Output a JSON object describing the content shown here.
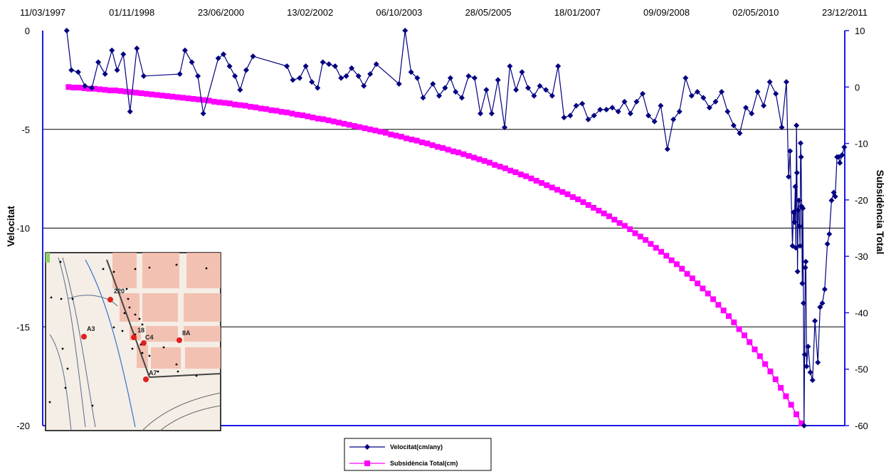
{
  "chart_data": {
    "type": "line",
    "title": "",
    "xlabel": "",
    "x_tick_labels": [
      "11/03/1997",
      "01/11/1998",
      "23/06/2000",
      "13/02/2002",
      "06/10/2003",
      "28/05/2005",
      "18/01/2007",
      "09/09/2008",
      "02/05/2010",
      "23/12/2011"
    ],
    "xlim": [
      "1997-03-11",
      "2011-12-23"
    ],
    "y_left": {
      "label": "Velocitat",
      "lim": [
        -20,
        0
      ],
      "ticks": [
        "0",
        "-5",
        "-10",
        "-15",
        "-20"
      ]
    },
    "y_right": {
      "label": "Subsidència Total",
      "lim": [
        -60,
        10
      ],
      "ticks": [
        "10",
        "0",
        "-10",
        "-20",
        "-30",
        "-40",
        "-50",
        "-60"
      ]
    },
    "grid": "horizontal",
    "legend_position": "bottom-center",
    "series": [
      {
        "name": "Velocitat(cm/any)",
        "axis": "left",
        "color": "#000080",
        "marker": "diamond",
        "points": [
          [
            "1997-08-20",
            0
          ],
          [
            "1997-09-20",
            -2.0
          ],
          [
            "1997-11-05",
            -2.1
          ],
          [
            "1997-12-20",
            -2.8
          ],
          [
            "1998-02-05",
            -2.9
          ],
          [
            "1998-03-20",
            -1.6
          ],
          [
            "1998-05-05",
            -2.2
          ],
          [
            "1998-06-20",
            -1.0
          ],
          [
            "1998-07-25",
            -2.0
          ],
          [
            "1998-09-05",
            -1.2
          ],
          [
            "1998-10-20",
            -4.1
          ],
          [
            "1998-12-05",
            -0.9
          ],
          [
            "1999-01-20",
            -2.3
          ],
          [
            "1999-09-20",
            -2.2
          ],
          [
            "1999-10-25",
            -1.0
          ],
          [
            "1999-12-10",
            -1.6
          ],
          [
            "2000-01-20",
            -2.3
          ],
          [
            "2000-02-25",
            -4.2
          ],
          [
            "2000-06-05",
            -1.4
          ],
          [
            "2000-07-10",
            -1.2
          ],
          [
            "2000-08-20",
            -1.8
          ],
          [
            "2000-09-25",
            -2.3
          ],
          [
            "2000-10-30",
            -3.0
          ],
          [
            "2000-12-10",
            -2.0
          ],
          [
            "2001-01-25",
            -1.3
          ],
          [
            "2001-09-10",
            -1.8
          ],
          [
            "2001-10-20",
            -2.5
          ],
          [
            "2001-12-05",
            -2.4
          ],
          [
            "2002-01-15",
            -1.8
          ],
          [
            "2002-02-25",
            -2.6
          ],
          [
            "2002-04-05",
            -2.9
          ],
          [
            "2002-05-10",
            -1.6
          ],
          [
            "2002-06-20",
            -1.7
          ],
          [
            "2002-08-01",
            -1.8
          ],
          [
            "2002-09-10",
            -2.4
          ],
          [
            "2002-10-15",
            -2.3
          ],
          [
            "2002-11-20",
            -1.9
          ],
          [
            "2003-01-05",
            -2.3
          ],
          [
            "2003-02-10",
            -2.8
          ],
          [
            "2003-03-25",
            -2.2
          ],
          [
            "2003-05-05",
            -1.7
          ],
          [
            "2003-10-05",
            -2.7
          ],
          [
            "2003-11-15",
            0
          ],
          [
            "2003-12-25",
            -2.1
          ],
          [
            "2004-02-05",
            -2.4
          ],
          [
            "2004-03-15",
            -3.4
          ],
          [
            "2004-05-20",
            -2.7
          ],
          [
            "2004-07-01",
            -3.3
          ],
          [
            "2004-08-10",
            -2.9
          ],
          [
            "2004-09-15",
            -2.4
          ],
          [
            "2004-10-20",
            -3.1
          ],
          [
            "2004-12-01",
            -3.4
          ],
          [
            "2005-01-15",
            -2.3
          ],
          [
            "2005-02-25",
            -2.4
          ],
          [
            "2005-04-05",
            -4.2
          ],
          [
            "2005-05-15",
            -3.0
          ],
          [
            "2005-06-20",
            -4.2
          ],
          [
            "2005-08-01",
            -2.5
          ],
          [
            "2005-09-15",
            -4.9
          ],
          [
            "2005-10-20",
            -1.8
          ],
          [
            "2005-12-01",
            -3.0
          ],
          [
            "2006-01-10",
            -2.1
          ],
          [
            "2006-02-20",
            -2.9
          ],
          [
            "2006-04-01",
            -3.3
          ],
          [
            "2006-05-10",
            -2.8
          ],
          [
            "2006-06-20",
            -3.0
          ],
          [
            "2006-08-01",
            -3.3
          ],
          [
            "2006-09-10",
            -1.8
          ],
          [
            "2006-10-20",
            -4.4
          ],
          [
            "2006-12-01",
            -4.3
          ],
          [
            "2007-01-10",
            -3.8
          ],
          [
            "2007-02-20",
            -3.7
          ],
          [
            "2007-04-01",
            -4.5
          ],
          [
            "2007-05-10",
            -4.3
          ],
          [
            "2007-06-20",
            -4.0
          ],
          [
            "2007-08-01",
            -4.0
          ],
          [
            "2007-09-10",
            -3.9
          ],
          [
            "2007-10-20",
            -4.1
          ],
          [
            "2007-12-01",
            -3.6
          ],
          [
            "2008-01-10",
            -4.2
          ],
          [
            "2008-02-20",
            -3.6
          ],
          [
            "2008-04-01",
            -3.2
          ],
          [
            "2008-05-10",
            -4.3
          ],
          [
            "2008-06-20",
            -4.6
          ],
          [
            "2008-08-01",
            -3.8
          ],
          [
            "2008-09-15",
            -6.0
          ],
          [
            "2008-10-25",
            -4.5
          ],
          [
            "2008-12-05",
            -4.1
          ],
          [
            "2009-01-15",
            -2.4
          ],
          [
            "2009-02-25",
            -3.3
          ],
          [
            "2009-04-05",
            -3.1
          ],
          [
            "2009-05-15",
            -3.4
          ],
          [
            "2009-06-25",
            -3.9
          ],
          [
            "2009-08-05",
            -3.6
          ],
          [
            "2009-09-15",
            -3.1
          ],
          [
            "2009-10-25",
            -4.1
          ],
          [
            "2009-12-05",
            -4.8
          ],
          [
            "2010-01-15",
            -5.2
          ],
          [
            "2010-02-25",
            -3.9
          ],
          [
            "2010-04-05",
            -4.2
          ],
          [
            "2010-05-15",
            -3.1
          ],
          [
            "2010-06-25",
            -3.8
          ],
          [
            "2010-08-05",
            -2.6
          ],
          [
            "2010-09-15",
            -3.2
          ],
          [
            "2010-10-25",
            -4.9
          ],
          [
            "2010-11-25",
            -2.6
          ]
        ]
      },
      {
        "name": "Subsidència Total(cm)",
        "axis": "right",
        "color": "#ff00ff",
        "marker": "square",
        "points": []
      }
    ]
  },
  "inset_map": {
    "labels": [
      "220",
      "A3",
      "18",
      "C4",
      "8A",
      "A7"
    ]
  }
}
